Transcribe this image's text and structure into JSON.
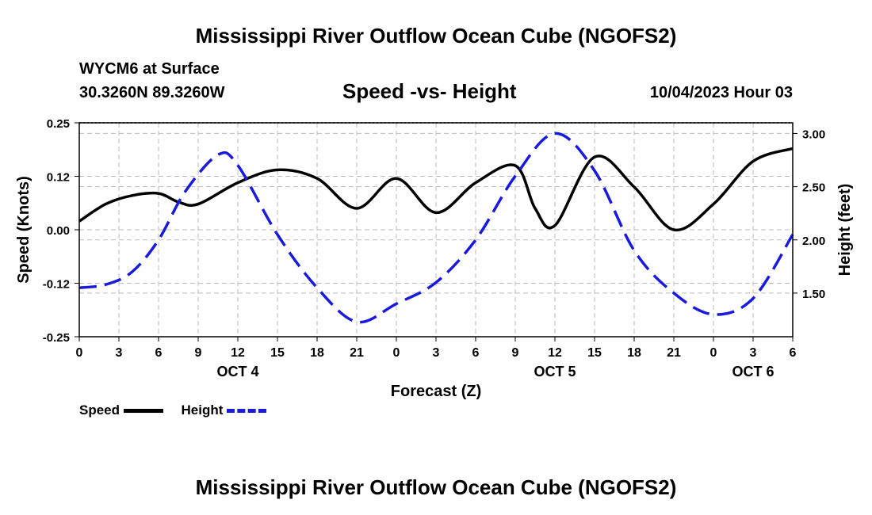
{
  "header": {
    "title": "Mississippi River Outflow Ocean Cube (NGOFS2)",
    "station_line": "WYCM6 at Surface",
    "coords_line": "30.3260N  89.3260W",
    "date_line": "10/04/2023 Hour 03",
    "footer_title": "Mississippi River Outflow Ocean Cube (NGOFS2)"
  },
  "colors": {
    "speed": "#000000",
    "height": "#1a1adc",
    "grid": "#bdbdbd"
  },
  "chart_data": {
    "type": "line",
    "title": "Speed -vs- Height",
    "xlabel": "Forecast (Z)",
    "ylabel": "Speed (Knots)",
    "y2label": "Height (feet)",
    "x_ticks": [
      "0",
      "3",
      "6",
      "9",
      "12",
      "15",
      "18",
      "21",
      "0",
      "3",
      "6",
      "9",
      "12",
      "15",
      "18",
      "21",
      "0",
      "3",
      "6"
    ],
    "x_range_hours": [
      0,
      54
    ],
    "day_labels": [
      {
        "text": "OCT 4",
        "hour": 12
      },
      {
        "text": "OCT 5",
        "hour": 36
      },
      {
        "text": "OCT 6",
        "hour": 51
      }
    ],
    "y_ticks": [
      "0.25",
      "0.12",
      "0.00",
      "-0.12",
      "-0.25"
    ],
    "y_tick_values": [
      0.25,
      0.125,
      0.0,
      -0.125,
      -0.25
    ],
    "ylim": [
      -0.25,
      0.25
    ],
    "y2_ticks": [
      "3.00",
      "2.50",
      "2.00",
      "1.50"
    ],
    "y2_tick_values": [
      3.0,
      2.5,
      2.0,
      1.5
    ],
    "y2lim": [
      1.09,
      3.1
    ],
    "series": [
      {
        "name": "Speed",
        "axis": "left",
        "style": "solid",
        "x": [
          0,
          2,
          4,
          6,
          7.5,
          9,
          12,
          15,
          18,
          21,
          24,
          27,
          30,
          33,
          34.5,
          36,
          39,
          42,
          45,
          48,
          51,
          54
        ],
        "values": [
          0.02,
          0.06,
          0.08,
          0.085,
          0.065,
          0.06,
          0.11,
          0.14,
          0.12,
          0.05,
          0.12,
          0.04,
          0.11,
          0.15,
          0.05,
          0.01,
          0.17,
          0.1,
          0.0,
          0.06,
          0.16,
          0.19
        ]
      },
      {
        "name": "Height",
        "axis": "right",
        "style": "dashed",
        "x": [
          0,
          2,
          4,
          6,
          8,
          10.5,
          12,
          15,
          18,
          21,
          24,
          27,
          30,
          33,
          36,
          39,
          42,
          45,
          48,
          51,
          54
        ],
        "values": [
          1.55,
          1.58,
          1.7,
          2.0,
          2.45,
          2.8,
          2.7,
          2.05,
          1.55,
          1.23,
          1.4,
          1.6,
          2.0,
          2.6,
          3.0,
          2.65,
          1.9,
          1.5,
          1.3,
          1.45,
          2.05
        ]
      }
    ],
    "legend": {
      "placement": "bottom-left",
      "entries": [
        {
          "label": "Speed",
          "series": "Speed"
        },
        {
          "label": "Height",
          "series": "Height"
        }
      ]
    }
  }
}
